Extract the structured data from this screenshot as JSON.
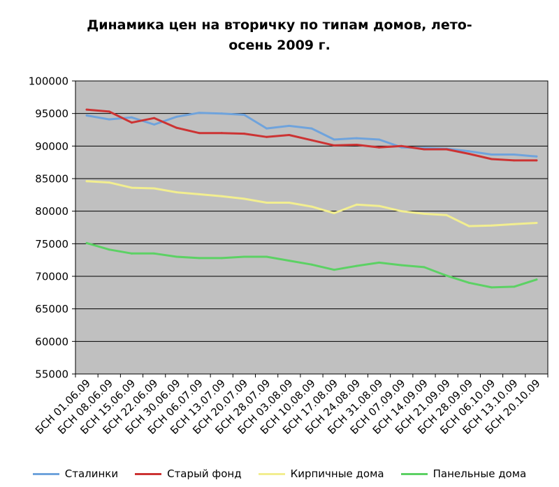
{
  "chart_data": {
    "type": "line",
    "title_lines": [
      "Динамика цен на вторичку по типам домов, лето-",
      "осень 2009 г."
    ],
    "xlabel": "",
    "ylabel": "",
    "ylim": [
      55000,
      100000
    ],
    "yticks": [
      "100000",
      "95000",
      "90000",
      "85000",
      "80000",
      "75000",
      "70000",
      "65000",
      "60000",
      "55000"
    ],
    "grid": true,
    "legend_position": "bottom",
    "plot_background": "#c0c0c0",
    "categories": [
      "БСН 01.06.09",
      "БСН 08.06.09",
      "БСН 15.06.09",
      "БСН 22.06.09",
      "БСН 30.06.09",
      "БСН 06.07.09",
      "БСН 13.07.09",
      "БСН 20.07.09",
      "БСН 28.07.09",
      "БСН 03.08.09",
      "БСН 10.08.09",
      "БСН 17.08.09",
      "БСН 24.08.09",
      "БСН 31.08.09",
      "БСН 07.09.09",
      "БСН 14.09.09",
      "БСН 21.09.09",
      "БСН 28.09.09",
      "БСН 06.10.09",
      "БСН 13.10.09",
      "БСН 20.10.09"
    ],
    "series": [
      {
        "name": "Сталинки",
        "color": "#6fa3dc",
        "values": [
          94700,
          94100,
          94400,
          93300,
          94500,
          95100,
          95000,
          94800,
          92700,
          93100,
          92700,
          91000,
          91200,
          91000,
          89800,
          89700,
          89600,
          89200,
          88700,
          88700,
          88400
        ]
      },
      {
        "name": "Старый фонд",
        "color": "#cc3333",
        "values": [
          95600,
          95300,
          93600,
          94300,
          92800,
          92000,
          92000,
          91900,
          91400,
          91700,
          90900,
          90100,
          90200,
          89800,
          90000,
          89500,
          89500,
          88800,
          88000,
          87800,
          87800
        ]
      },
      {
        "name": "Кирпичные дома",
        "color": "#f2ee90",
        "values": [
          84600,
          84400,
          83600,
          83500,
          82900,
          82600,
          82300,
          81900,
          81300,
          81300,
          80700,
          79700,
          81000,
          80800,
          80000,
          79600,
          79400,
          77700,
          77800,
          78000,
          78200
        ]
      },
      {
        "name": "Панельные дома",
        "color": "#5cd164",
        "values": [
          75100,
          74100,
          73500,
          73500,
          73000,
          72800,
          72800,
          73000,
          73000,
          72400,
          71800,
          71000,
          71600,
          72100,
          71700,
          71400,
          70100,
          69000,
          68300,
          68400,
          69500
        ]
      }
    ]
  }
}
